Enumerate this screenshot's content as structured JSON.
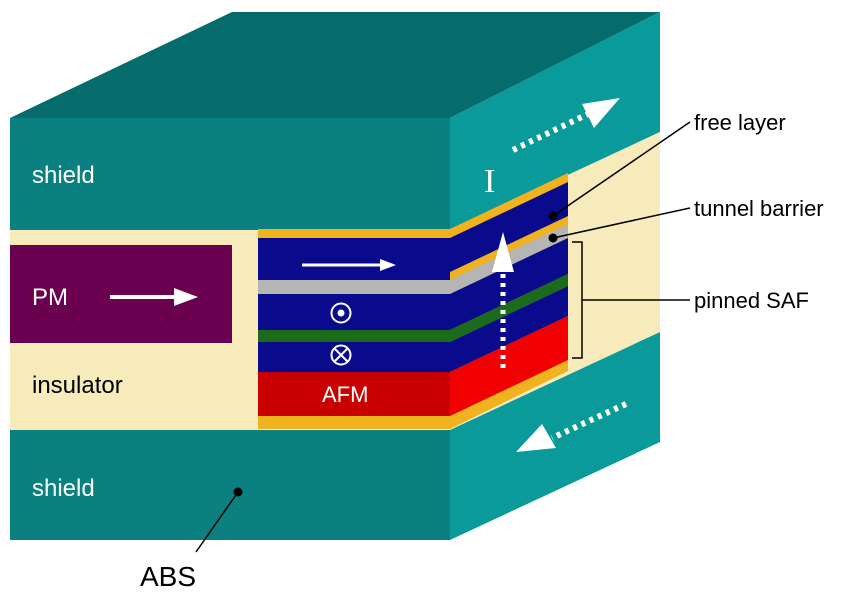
{
  "labels": {
    "shield_top": "shield",
    "shield_bottom": "shield",
    "pm": "PM",
    "insulator": "insulator",
    "afm": "AFM",
    "current": "I",
    "free_layer": "free layer",
    "tunnel_barrier": "tunnel barrier",
    "pinned_saf": "pinned SAF",
    "abs": "ABS"
  },
  "colors": {
    "shield_front": "#0b8080",
    "shield_top": "#056b6b",
    "shield_side": "#0a9a9a",
    "insulator": "#f7eabb",
    "pm": "#6b0050",
    "cap": "#f0b21e",
    "layer_blue": "#0a0a8c",
    "barrier": "#b5b5b5",
    "spacer": "#1a6b1a",
    "afm_front": "#c80000",
    "afm_side": "#f00000"
  }
}
